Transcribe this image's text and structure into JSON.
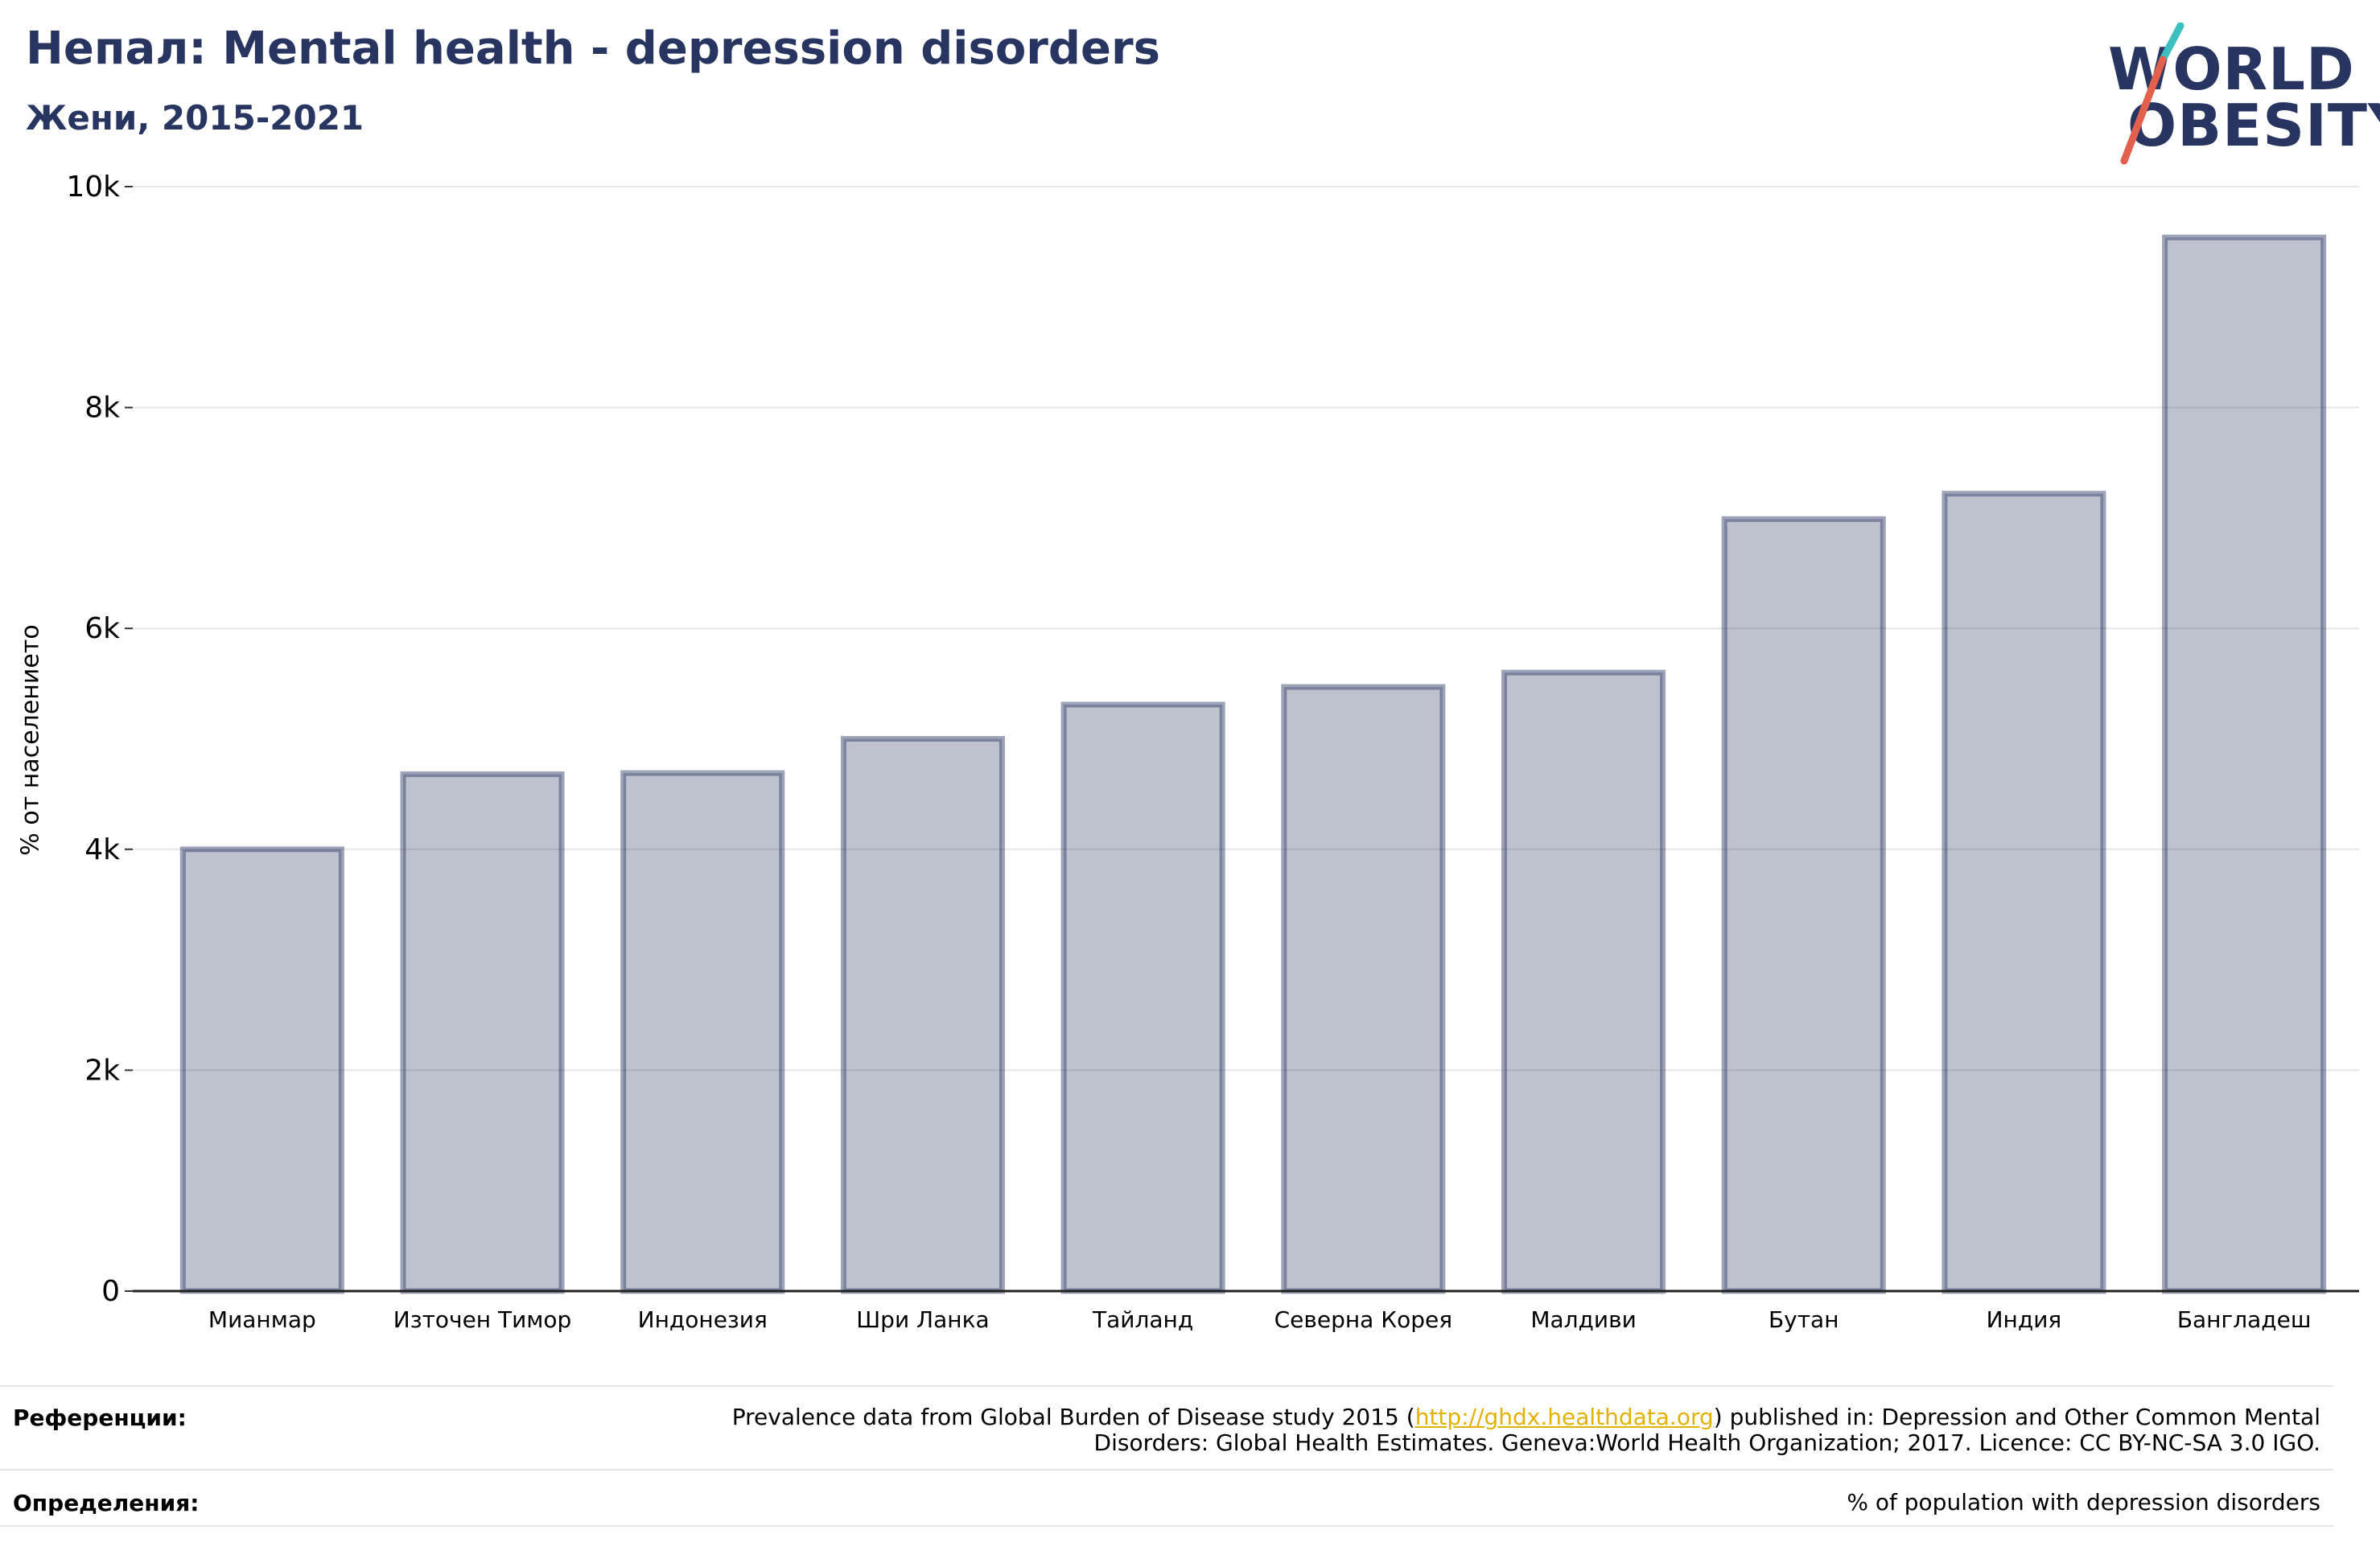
{
  "header": {
    "title": "Непал: Mental health - depression disorders",
    "subtitle": "Жени, 2015-2021"
  },
  "logo": {
    "line1": "WORLD",
    "line2": "OBESITY",
    "slash_colors": [
      "#3cbfbf",
      "#e4604e"
    ]
  },
  "chart_data": {
    "type": "bar",
    "categories": [
      "Мианмар",
      "Източен Тимор",
      "Индонезия",
      "Шри Ланка",
      "Тайланд",
      "Северна Корея",
      "Малдиви",
      "Бутан",
      "Индия",
      "Бангладеш"
    ],
    "values": [
      4000,
      4680,
      4690,
      5000,
      5310,
      5470,
      5600,
      6990,
      7220,
      9540
    ],
    "ylabel": "% от населението",
    "ylim": [
      0,
      10000
    ],
    "yticks": [
      0,
      2000,
      4000,
      6000,
      8000,
      10000
    ],
    "ytick_labels": [
      "0",
      "2k",
      "4k",
      "6k",
      "8k",
      "10k"
    ],
    "grid": true,
    "bar_color": "#273560"
  },
  "footer": {
    "references_label": "Референции:",
    "references_pre": "Prevalence data from Global Burden of Disease study 2015 (",
    "references_link": "http://ghdx.healthdata.org",
    "references_post": ") published in: Depression and Other Common Mental",
    "references_line2": "Disorders: Global Health Estimates. Geneva:World Health Organization; 2017. Licence: CC BY-NC-SA 3.0 IGO.",
    "definitions_label": "Определения:",
    "definitions_text": "% of population with depression disorders"
  }
}
